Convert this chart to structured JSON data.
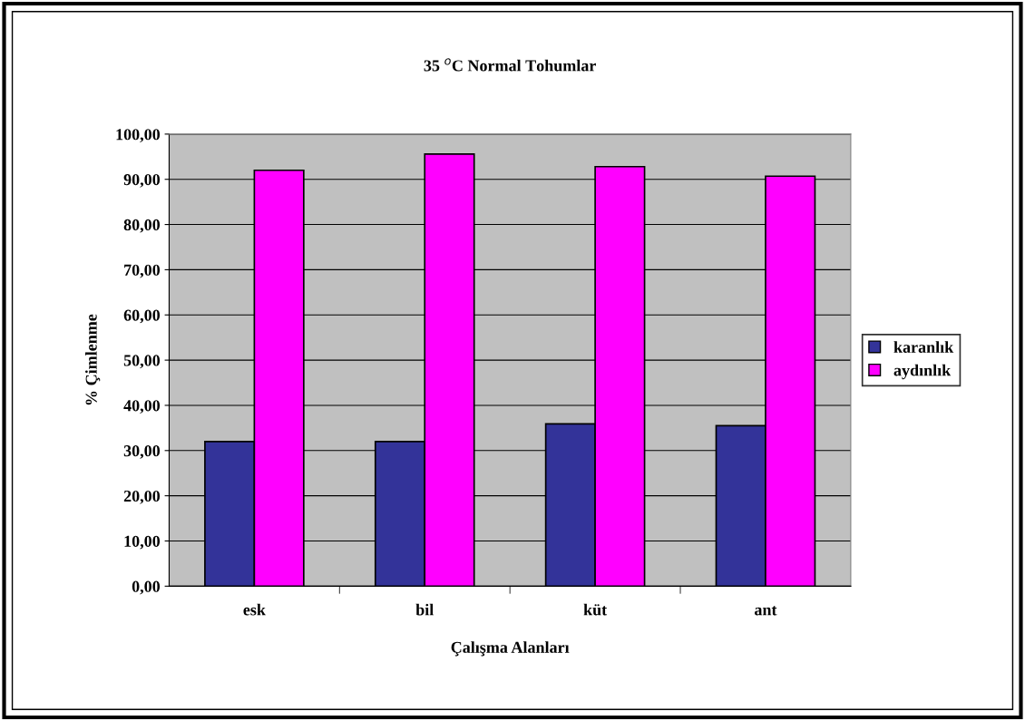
{
  "chart_data": {
    "type": "bar",
    "title": "35 $^{o}$C Normal Tohumlar",
    "xlabel": "Çalışma Alanları",
    "ylabel": "% Çimlenme",
    "categories": [
      "esk",
      "bil",
      "küt",
      "ant"
    ],
    "series": [
      {
        "name": "karanlık",
        "color": "#333399",
        "values": [
          32.0,
          32.0,
          35.9,
          35.5
        ]
      },
      {
        "name": "aydınlık",
        "color": "#ff00ff",
        "values": [
          92.0,
          95.6,
          92.8,
          90.7
        ]
      }
    ],
    "ylim": [
      0,
      100
    ],
    "yticks": [
      {
        "value": 0,
        "label": "0,00"
      },
      {
        "value": 10,
        "label": "10,00"
      },
      {
        "value": 20,
        "label": "20,00"
      },
      {
        "value": 30,
        "label": "30,00"
      },
      {
        "value": 40,
        "label": "40,00"
      },
      {
        "value": 50,
        "label": "50,00"
      },
      {
        "value": 60,
        "label": "60,00"
      },
      {
        "value": 70,
        "label": "70,00"
      },
      {
        "value": 80,
        "label": "80,00"
      },
      {
        "value": 90,
        "label": "90,00"
      },
      {
        "value": 100,
        "label": "100,00"
      }
    ],
    "grid": "y",
    "legend": "right"
  }
}
